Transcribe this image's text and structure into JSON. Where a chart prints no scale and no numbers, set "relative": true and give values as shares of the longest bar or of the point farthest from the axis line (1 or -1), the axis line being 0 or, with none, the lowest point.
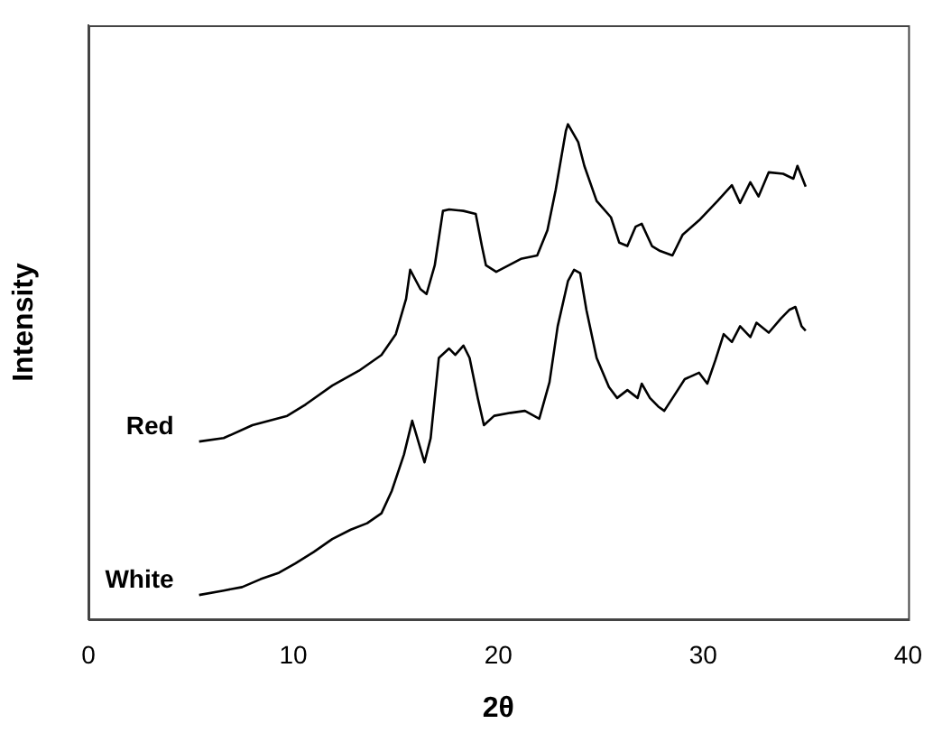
{
  "chart_data": {
    "type": "line",
    "xlabel": "2θ",
    "ylabel": "Intensity",
    "relative": true,
    "xlim": [
      0,
      40
    ],
    "xticks": [
      0,
      10,
      20,
      30,
      40
    ],
    "tick_labels": "x",
    "grid": false,
    "legend": false,
    "marker": "none",
    "line_style": "solid",
    "series": [
      {
        "name": "Red",
        "color": "#000000",
        "x": [
          5.4,
          6.6,
          8.0,
          9.7,
          10.6,
          11.9,
          13.2,
          14.3,
          15.0,
          15.5,
          15.7,
          16.2,
          16.5,
          16.9,
          17.3,
          17.6,
          18.3,
          18.9,
          19.2,
          19.4,
          19.9,
          21.1,
          21.9,
          22.4,
          22.8,
          23.3,
          23.4,
          23.9,
          24.2,
          24.8,
          25.5,
          25.9,
          26.3,
          26.7,
          27.0,
          27.5,
          27.9,
          28.5,
          29.0,
          29.8,
          30.7,
          31.4,
          31.8,
          32.3,
          32.7,
          33.2,
          33.9,
          34.4,
          34.6,
          35.0
        ],
        "values": [
          0.359,
          0.366,
          0.392,
          0.411,
          0.434,
          0.472,
          0.502,
          0.534,
          0.576,
          0.647,
          0.706,
          0.667,
          0.657,
          0.715,
          0.825,
          0.828,
          0.825,
          0.819,
          0.754,
          0.715,
          0.702,
          0.728,
          0.735,
          0.786,
          0.867,
          0.987,
          1,
          0.964,
          0.916,
          0.845,
          0.812,
          0.761,
          0.754,
          0.793,
          0.799,
          0.754,
          0.744,
          0.735,
          0.777,
          0.806,
          0.845,
          0.877,
          0.841,
          0.883,
          0.854,
          0.903,
          0.9,
          0.89,
          0.916,
          0.874
        ]
      },
      {
        "name": "White",
        "color": "#000000",
        "x": [
          5.4,
          6.6,
          7.5,
          8.4,
          9.3,
          10.1,
          11.0,
          11.9,
          12.8,
          13.6,
          14.3,
          14.8,
          15.4,
          15.8,
          16.4,
          16.7,
          17.1,
          17.6,
          17.9,
          18.3,
          18.6,
          19.0,
          19.3,
          19.8,
          20.6,
          21.3,
          22.0,
          22.5,
          22.9,
          23.4,
          23.7,
          24.0,
          24.3,
          24.8,
          25.4,
          25.8,
          26.3,
          26.8,
          27.0,
          27.4,
          27.8,
          28.1,
          28.6,
          29.1,
          29.8,
          30.2,
          30.6,
          31.0,
          31.4,
          31.8,
          32.3,
          32.6,
          33.2,
          33.8,
          34.2,
          34.5,
          34.8,
          35.0
        ],
        "values": [
          0.049,
          0.058,
          0.065,
          0.081,
          0.094,
          0.113,
          0.136,
          0.162,
          0.181,
          0.194,
          0.214,
          0.259,
          0.333,
          0.401,
          0.317,
          0.366,
          0.528,
          0.547,
          0.534,
          0.553,
          0.528,
          0.447,
          0.392,
          0.411,
          0.417,
          0.421,
          0.405,
          0.479,
          0.592,
          0.683,
          0.706,
          0.699,
          0.625,
          0.528,
          0.469,
          0.447,
          0.463,
          0.447,
          0.476,
          0.447,
          0.43,
          0.421,
          0.453,
          0.485,
          0.498,
          0.476,
          0.524,
          0.576,
          0.56,
          0.592,
          0.57,
          0.599,
          0.579,
          0.608,
          0.625,
          0.631,
          0.592,
          0.583
        ]
      }
    ]
  }
}
